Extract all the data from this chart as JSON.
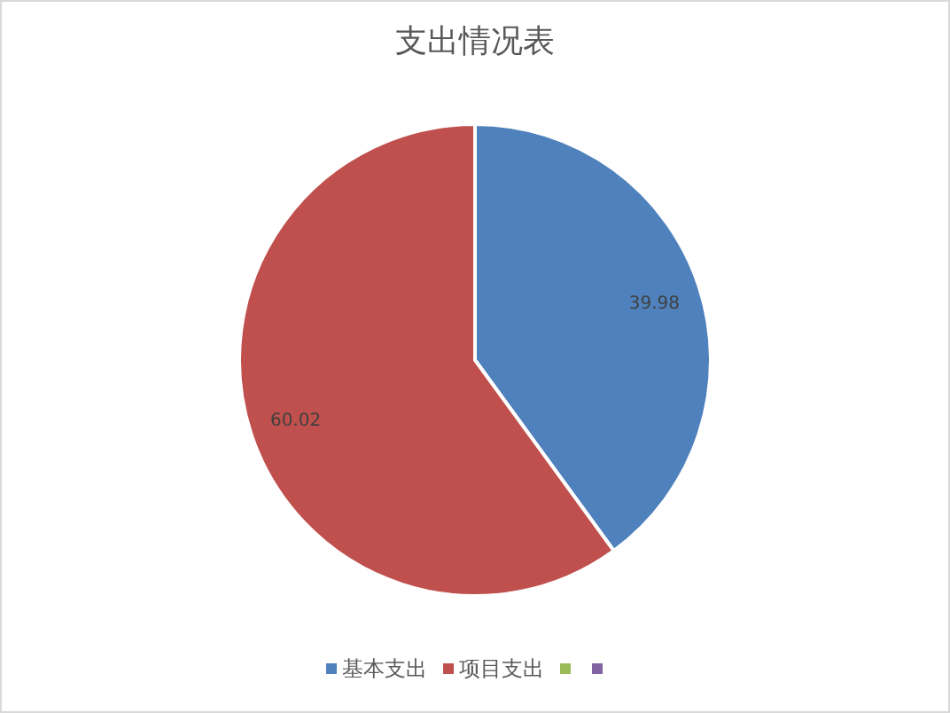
{
  "chart_data": {
    "type": "pie",
    "title": "支出情况表",
    "categories": [
      "基本支出",
      "项目支出",
      null,
      null
    ],
    "values": [
      39.98,
      60.02,
      0,
      0
    ],
    "colors": [
      "#4f81bd",
      "#c0504d",
      "#9bbb59",
      "#8064a2"
    ],
    "data_labels": true,
    "legend": "bottom"
  }
}
